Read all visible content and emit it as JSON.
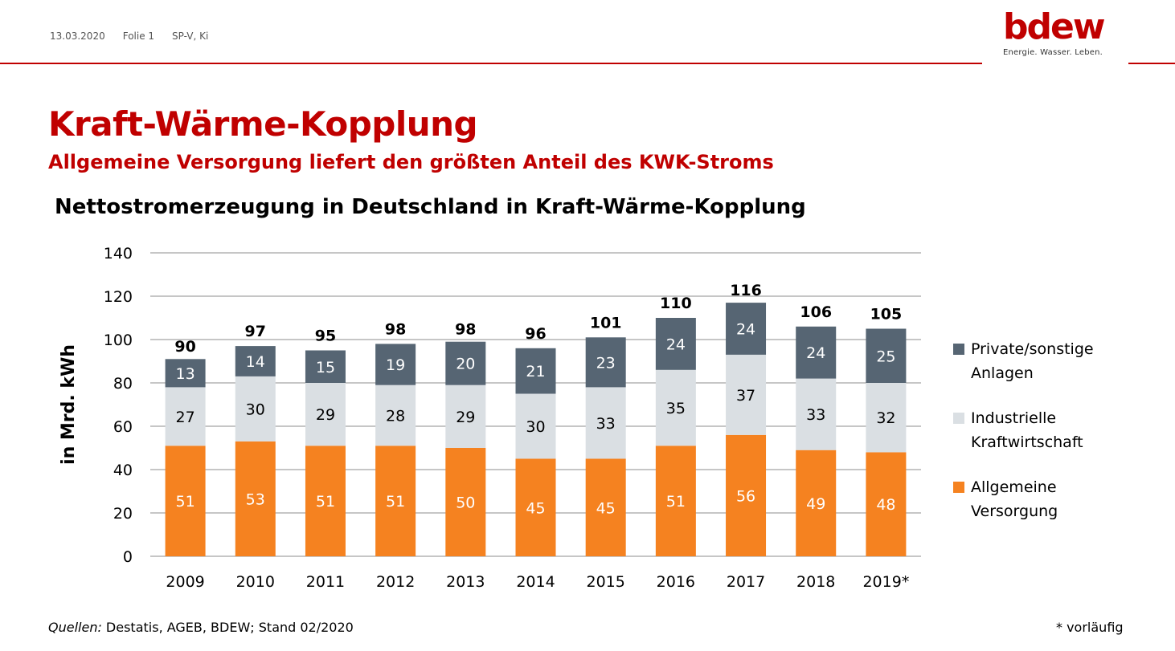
{
  "header": {
    "date": "13.03.2020",
    "slide": "Folie 1",
    "dept": "SP-V, Ki"
  },
  "logo": {
    "word": "bdew",
    "tagline": "Energie. Wasser. Leben."
  },
  "title": "Kraft-Wärme-Kopplung",
  "subtitle": "Allgemeine Versorgung liefert den größten Anteil des KWK-Stroms",
  "source": {
    "prefix": "Quellen:",
    "text": " Destatis, AGEB, BDEW; Stand 02/2020"
  },
  "footnote": "* vorläufig",
  "colors": {
    "brand_red": "#c00000",
    "series_private": "#566573",
    "series_industry": "#dadfe3",
    "series_public": "#f58220"
  },
  "chart_data": {
    "type": "bar",
    "stacked": true,
    "title": "Nettostromerzeugung in Deutschland in Kraft-Wärme-Kopplung",
    "ylabel": "in Mrd. kWh",
    "xlabel": "",
    "ylim": [
      0,
      140
    ],
    "yticks": [
      0,
      20,
      40,
      60,
      80,
      100,
      120,
      140
    ],
    "grid": true,
    "legend_position": "right",
    "categories": [
      "2009",
      "2010",
      "2011",
      "2012",
      "2013",
      "2014",
      "2015",
      "2016",
      "2017",
      "2018",
      "2019*"
    ],
    "series": [
      {
        "name": "Allgemeine Versorgung",
        "color": "#f58220",
        "values": [
          51,
          53,
          51,
          51,
          50,
          45,
          45,
          51,
          56,
          49,
          48
        ]
      },
      {
        "name": "Industrielle Kraftwirtschaft",
        "color": "#dadfe3",
        "values": [
          27,
          30,
          29,
          28,
          29,
          30,
          33,
          35,
          37,
          33,
          32
        ]
      },
      {
        "name": "Private/sonstige Anlagen",
        "color": "#566573",
        "values": [
          13,
          14,
          15,
          19,
          20,
          21,
          23,
          24,
          24,
          24,
          25
        ]
      }
    ],
    "totals": [
      90,
      97,
      95,
      98,
      98,
      96,
      101,
      110,
      116,
      106,
      105
    ],
    "legend": [
      {
        "label": "Private/sonstige\nAnlagen",
        "color": "#566573"
      },
      {
        "label": "Industrielle\nKraftwirtschaft",
        "color": "#dadfe3"
      },
      {
        "label": "Allgemeine\nVersorgung",
        "color": "#f58220"
      }
    ]
  }
}
